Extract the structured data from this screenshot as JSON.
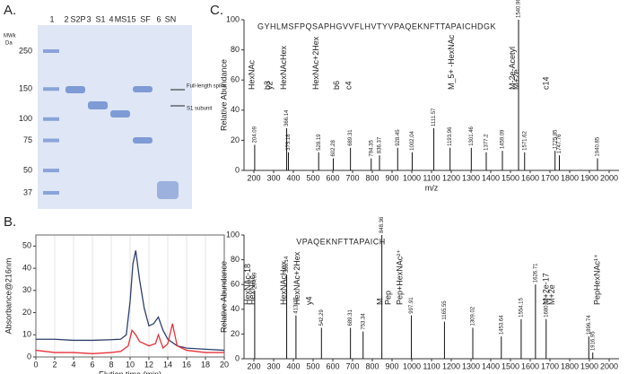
{
  "panel_a": {
    "letter": "A.",
    "lane_numbers": [
      1,
      2,
      3,
      4,
      5,
      6
    ],
    "lane_names": [
      "S2P",
      "S1",
      "MS1",
      "SF",
      "SN"
    ],
    "mw_label": [
      "MWk",
      "Da"
    ],
    "markers": [
      250,
      150,
      100,
      75,
      50,
      37
    ],
    "annotations": [
      "Full-length spike",
      "S1 subunit"
    ]
  },
  "panel_b_letter": "B.",
  "panel_c_letter": "C.",
  "chart_data": [
    {
      "type": "line",
      "ylabel": "Absorbance@216nm",
      "xlabel": "Elution time (min)",
      "xlim": [
        0,
        20
      ],
      "ylim": [
        0,
        55
      ],
      "xticks": [
        0,
        2,
        4,
        6,
        8,
        10,
        12,
        14,
        16,
        18,
        20
      ],
      "yticks": [
        0,
        10,
        20,
        30,
        40,
        50
      ],
      "grid": true,
      "series": [
        {
          "color": "#2e3f6e",
          "x": [
            0,
            2,
            4,
            6,
            8,
            9,
            9.6,
            10,
            10.3,
            10.6,
            11,
            11.5,
            12,
            12.5,
            13,
            13.5,
            14,
            15,
            16,
            18,
            20
          ],
          "values": [
            8,
            8,
            7.5,
            7.5,
            7.8,
            8,
            10,
            25,
            42,
            48,
            35,
            22,
            14,
            15,
            18,
            12,
            8,
            5,
            4,
            3.5,
            3
          ]
        },
        {
          "color": "#e8313a",
          "x": [
            0,
            2,
            4,
            6,
            8,
            9,
            9.8,
            10.2,
            10.6,
            11,
            12,
            12.7,
            13,
            13.5,
            14,
            14.5,
            15,
            16,
            18,
            20
          ],
          "values": [
            3,
            2,
            2,
            1.5,
            2,
            2.5,
            5,
            12,
            10,
            7,
            5,
            6,
            10,
            4,
            6,
            15,
            5,
            3,
            2,
            2
          ]
        }
      ]
    },
    {
      "type": "spectrum",
      "ylabel": "Relative Abundance",
      "xlabel": "m/z",
      "xlim": [
        150,
        2050
      ],
      "ylim": [
        0,
        100
      ],
      "xticks": [
        200,
        300,
        400,
        500,
        600,
        700,
        800,
        900,
        1000,
        1100,
        1200,
        1300,
        1400,
        1500,
        1600,
        1700,
        1800,
        1900,
        2000
      ],
      "yticks": [
        0,
        20,
        40,
        60,
        80,
        100
      ],
      "color": "#111",
      "sequence": "GYHLMSFPQSAPHGVVFLHVTYVPAQEKNFTTAPAICHDGK",
      "x": [
        204.09,
        366.14,
        375.18,
        528.19,
        602.28,
        689.31,
        794.35,
        836.37,
        928.45,
        1002.04,
        1111.57,
        1193.96,
        1301.46,
        1377.2,
        1459.09,
        1540.96,
        1571.62,
        1725.85,
        1747.76,
        1940.85
      ],
      "values": [
        17,
        28,
        12,
        12,
        8,
        15,
        8,
        10,
        15,
        12,
        28,
        15,
        15,
        12,
        13,
        100,
        12,
        13,
        10,
        8
      ],
      "annotations": [
        {
          "text": "HexNAc",
          "x": 210,
          "color": "#3a9a3a"
        },
        {
          "text": "HexNAcHex",
          "x": 372,
          "color": "#3a9a3a"
        },
        {
          "text": "HexNAc+2Hex",
          "x": 534,
          "color": "#3a9a3a"
        },
        {
          "text": "b3",
          "x": 290,
          "color": "#2f7fc1"
        },
        {
          "text": "y2",
          "x": 300,
          "color": "#d9342b"
        },
        {
          "text": "b6",
          "x": 640,
          "color": "#2f7fc1"
        },
        {
          "text": "c4",
          "x": 700,
          "color": "#e59400"
        },
        {
          "text": "M_5+ -HexNAc",
          "x": 1220,
          "color": "#3a9a3a"
        },
        {
          "text": "M-2e-Acetyl",
          "x": 1530,
          "color": "#3a9a3a"
        },
        {
          "text": "M+2e",
          "x": 1550,
          "color": "#3a9a3a"
        },
        {
          "text": "c14",
          "x": 1700,
          "color": "#e59400"
        }
      ]
    },
    {
      "type": "spectrum",
      "ylabel": "Relative Abundance",
      "xlim": [
        150,
        2050
      ],
      "ylim": [
        0,
        100
      ],
      "xticks": [
        200,
        300,
        400,
        500,
        600,
        700,
        800,
        900,
        1000,
        1100,
        1200,
        1300,
        1400,
        1500,
        1600,
        1700,
        1800,
        1900,
        2000
      ],
      "yticks": [
        0,
        20,
        40,
        60,
        80,
        100
      ],
      "color": "#111",
      "sequence": "VPAQEKNFTTAPAICH",
      "x": [
        204.09,
        366.14,
        413.17,
        542.29,
        689.31,
        753.34,
        848.36,
        997.91,
        1165.55,
        1309.02,
        1453.64,
        1554.15,
        1626.71,
        1680.72,
        1896.74,
        1916.95
      ],
      "values": [
        55,
        68,
        35,
        25,
        25,
        22,
        100,
        35,
        30,
        25,
        18,
        32,
        60,
        32,
        18,
        5
      ],
      "annotations": [
        {
          "text": "HexNAc-18",
          "x": 190,
          "color": "#3a9a3a"
        },
        {
          "text": "HexNAc",
          "x": 212,
          "color": "#3a9a3a"
        },
        {
          "text": "HexNAcHex",
          "x": 372,
          "color": "#3a9a3a"
        },
        {
          "text": "HexNAc+2Hex",
          "x": 440,
          "color": "#3a9a3a"
        },
        {
          "text": "y4",
          "x": 500,
          "color": "#d9342b"
        },
        {
          "text": "M",
          "x": 860,
          "color": "#3a9a3a"
        },
        {
          "text": "Pep",
          "x": 900,
          "color": "#3a9a3a"
        },
        {
          "text": "Pep+HexNAc²⁺",
          "x": 960,
          "color": "#3a9a3a"
        },
        {
          "text": "M+2e-17",
          "x": 1700,
          "color": "#3a9a3a"
        },
        {
          "text": "M+2e",
          "x": 1730,
          "color": "#3a9a3a"
        },
        {
          "text": "PepHexNAc¹⁺",
          "x": 1960,
          "color": "#3a9a3a"
        }
      ]
    }
  ]
}
